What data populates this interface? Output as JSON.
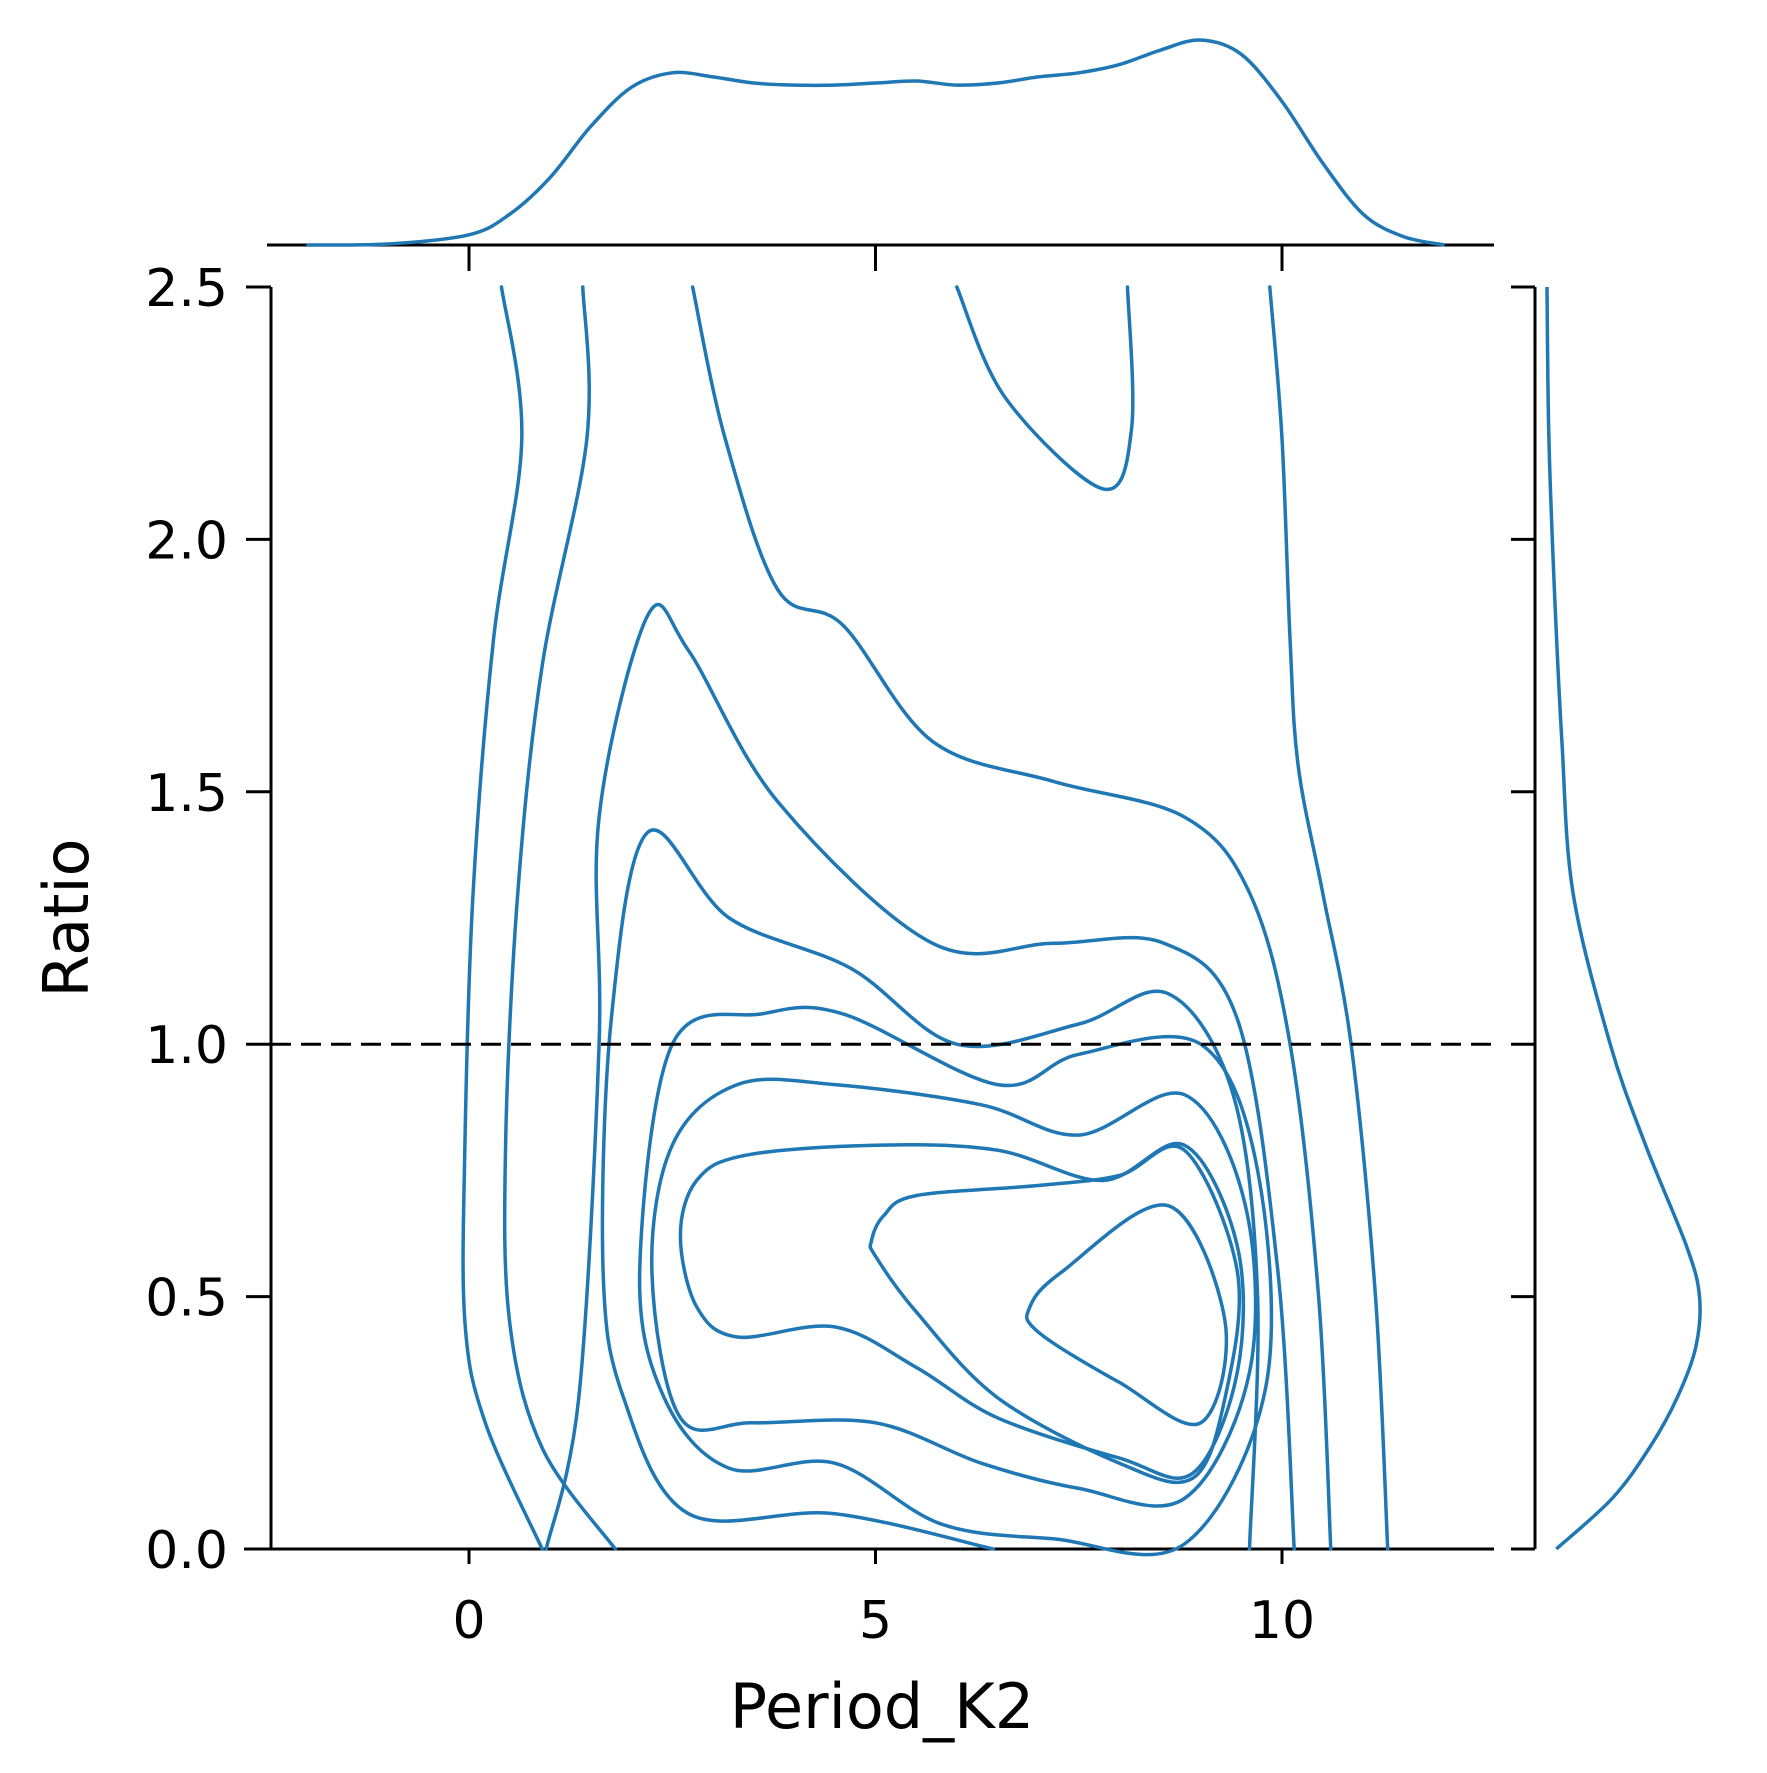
{
  "chart_data": {
    "type": "kde-jointplot",
    "xlabel": "Period_K2",
    "ylabel": "Ratio",
    "xlim": [
      -2.5,
      12.7
    ],
    "ylim": [
      0.0,
      2.5
    ],
    "xticks": [
      {
        "value": 0,
        "label": "0"
      },
      {
        "value": 5,
        "label": "5"
      },
      {
        "value": 10,
        "label": "10"
      }
    ],
    "yticks": [
      {
        "value": 0.0,
        "label": "0.0"
      },
      {
        "value": 0.5,
        "label": "0.5"
      },
      {
        "value": 1.0,
        "label": "1.0"
      },
      {
        "value": 1.5,
        "label": "1.5"
      },
      {
        "value": 2.0,
        "label": "2.0"
      },
      {
        "value": 2.5,
        "label": "2.5"
      }
    ],
    "reference_line": {
      "orientation": "horizontal",
      "y": 1.0,
      "style": "dashed",
      "color": "#000000"
    },
    "series_color": "#1f77b4",
    "contours": [
      {
        "level": 1,
        "closed": false,
        "points": [
          [
            0.4,
            2.5
          ],
          [
            0.65,
            2.2
          ],
          [
            0.3,
            1.8
          ],
          [
            0.05,
            1.3
          ],
          [
            -0.05,
            0.8
          ],
          [
            -0.05,
            0.45
          ],
          [
            0.2,
            0.25
          ],
          [
            0.9,
            0.0
          ]
        ]
      },
      {
        "level": 2,
        "closed": false,
        "points": [
          [
            1.4,
            2.5
          ],
          [
            1.45,
            2.2
          ],
          [
            0.9,
            1.75
          ],
          [
            0.6,
            1.3
          ],
          [
            0.45,
            0.8
          ],
          [
            0.5,
            0.45
          ],
          [
            0.9,
            0.2
          ],
          [
            1.8,
            0.0
          ]
        ]
      },
      {
        "level": 3,
        "closed": false,
        "points": [
          [
            2.75,
            2.5
          ],
          [
            3.15,
            2.2
          ],
          [
            3.8,
            1.9
          ],
          [
            4.6,
            1.83
          ],
          [
            5.7,
            1.6
          ],
          [
            7.2,
            1.52
          ],
          [
            8.8,
            1.45
          ],
          [
            9.6,
            1.3
          ],
          [
            10.1,
            1.0
          ],
          [
            10.45,
            0.5
          ],
          [
            10.6,
            0.0
          ]
        ]
      },
      {
        "level": 3,
        "closed": false,
        "points": [
          [
            6.0,
            2.5
          ],
          [
            6.6,
            2.28
          ],
          [
            7.8,
            2.1
          ],
          [
            8.15,
            2.22
          ],
          [
            8.1,
            2.5
          ]
        ]
      },
      {
        "level": 4,
        "closed": false,
        "points": [
          [
            9.85,
            2.5
          ],
          [
            10.0,
            2.2
          ],
          [
            10.1,
            1.8
          ],
          [
            10.2,
            1.55
          ],
          [
            10.5,
            1.3
          ],
          [
            10.85,
            1.0
          ],
          [
            11.15,
            0.5
          ],
          [
            11.3,
            0.0
          ]
        ]
      },
      {
        "level": 5,
        "closed": false,
        "points": [
          [
            0.95,
            0.0
          ],
          [
            1.35,
            0.3
          ],
          [
            1.6,
            1.0
          ],
          [
            1.6,
            1.45
          ],
          [
            2.2,
            1.85
          ],
          [
            2.7,
            1.78
          ],
          [
            3.8,
            1.48
          ],
          [
            5.7,
            1.2
          ],
          [
            7.2,
            1.2
          ],
          [
            8.55,
            1.2
          ],
          [
            9.45,
            1.05
          ],
          [
            9.95,
            0.55
          ],
          [
            10.15,
            0.0
          ]
        ]
      },
      {
        "level": 6,
        "closed": false,
        "points": [
          [
            6.45,
            0.0
          ],
          [
            4.5,
            0.07
          ],
          [
            2.7,
            0.07
          ],
          [
            1.9,
            0.3
          ],
          [
            1.65,
            0.55
          ],
          [
            1.75,
            1.05
          ],
          [
            2.2,
            1.42
          ],
          [
            3.2,
            1.25
          ],
          [
            4.7,
            1.15
          ],
          [
            6.0,
            1.0
          ],
          [
            7.5,
            1.04
          ],
          [
            8.6,
            1.1
          ],
          [
            9.4,
            0.9
          ],
          [
            9.7,
            0.5
          ],
          [
            9.6,
            0.0
          ]
        ]
      },
      {
        "level": 7,
        "closed": true,
        "points": [
          [
            2.1,
            0.55
          ],
          [
            2.4,
            0.3
          ],
          [
            3.2,
            0.16
          ],
          [
            4.5,
            0.17
          ],
          [
            5.8,
            0.05
          ],
          [
            7.2,
            0.02
          ],
          [
            8.8,
            0.01
          ],
          [
            9.8,
            0.32
          ],
          [
            9.7,
            0.75
          ],
          [
            9.0,
            1.0
          ],
          [
            7.5,
            0.98
          ],
          [
            6.5,
            0.92
          ],
          [
            4.6,
            1.06
          ],
          [
            3.6,
            1.06
          ],
          [
            2.5,
            1.0
          ]
        ]
      },
      {
        "level": 8,
        "closed": true,
        "points": [
          [
            2.25,
            0.55
          ],
          [
            2.6,
            0.26
          ],
          [
            3.5,
            0.25
          ],
          [
            5.0,
            0.25
          ],
          [
            6.3,
            0.17
          ],
          [
            7.5,
            0.12
          ],
          [
            8.8,
            0.1
          ],
          [
            9.6,
            0.35
          ],
          [
            9.55,
            0.68
          ],
          [
            8.8,
            0.9
          ],
          [
            7.5,
            0.82
          ],
          [
            6.3,
            0.88
          ],
          [
            4.5,
            0.92
          ],
          [
            3.3,
            0.92
          ],
          [
            2.5,
            0.8
          ]
        ]
      },
      {
        "level": 9,
        "closed": true,
        "points": [
          [
            2.6,
            0.62
          ],
          [
            2.8,
            0.48
          ],
          [
            3.3,
            0.42
          ],
          [
            4.5,
            0.44
          ],
          [
            5.5,
            0.36
          ],
          [
            6.5,
            0.26
          ],
          [
            8.0,
            0.18
          ],
          [
            8.9,
            0.15
          ],
          [
            9.45,
            0.35
          ],
          [
            9.45,
            0.6
          ],
          [
            8.8,
            0.8
          ],
          [
            7.8,
            0.73
          ],
          [
            6.5,
            0.79
          ],
          [
            5.0,
            0.8
          ],
          [
            3.4,
            0.78
          ],
          [
            2.8,
            0.73
          ]
        ]
      },
      {
        "level": 10,
        "closed": true,
        "points": [
          [
            4.95,
            0.61
          ],
          [
            5.1,
            0.66
          ],
          [
            5.5,
            0.7
          ],
          [
            7.0,
            0.72
          ],
          [
            8.0,
            0.74
          ],
          [
            8.8,
            0.79
          ],
          [
            9.45,
            0.55
          ],
          [
            9.3,
            0.3
          ],
          [
            8.9,
            0.14
          ],
          [
            8.0,
            0.17
          ],
          [
            6.5,
            0.3
          ],
          [
            5.5,
            0.47
          ],
          [
            5.0,
            0.58
          ]
        ]
      },
      {
        "level": 11,
        "closed": true,
        "points": [
          [
            6.9,
            0.48
          ],
          [
            7.3,
            0.55
          ],
          [
            8.6,
            0.68
          ],
          [
            9.3,
            0.45
          ],
          [
            9.0,
            0.25
          ],
          [
            8.0,
            0.33
          ],
          [
            7.0,
            0.43
          ]
        ]
      }
    ],
    "marginal_x": {
      "orientation": "top",
      "x": [
        -2.0,
        -1.0,
        0.0,
        0.5,
        1.0,
        1.5,
        2.0,
        2.5,
        3.0,
        3.5,
        4.0,
        4.5,
        5.0,
        5.5,
        6.0,
        6.5,
        7.0,
        7.5,
        8.0,
        8.5,
        9.0,
        9.5,
        10.0,
        10.5,
        11.0,
        11.5,
        12.0
      ],
      "density": [
        0.0,
        0.005,
        0.05,
        0.15,
        0.33,
        0.58,
        0.77,
        0.84,
        0.82,
        0.79,
        0.78,
        0.78,
        0.79,
        0.8,
        0.78,
        0.79,
        0.82,
        0.84,
        0.88,
        0.95,
        1.0,
        0.93,
        0.7,
        0.4,
        0.15,
        0.04,
        0.0
      ]
    },
    "marginal_y": {
      "orientation": "right",
      "y": [
        2.5,
        2.2,
        1.9,
        1.6,
        1.3,
        1.0,
        0.8,
        0.6,
        0.5,
        0.4,
        0.3,
        0.2,
        0.1,
        0.0
      ],
      "density": [
        0.0,
        0.01,
        0.04,
        0.08,
        0.14,
        0.34,
        0.53,
        0.75,
        0.82,
        0.8,
        0.7,
        0.55,
        0.35,
        0.05
      ]
    }
  }
}
